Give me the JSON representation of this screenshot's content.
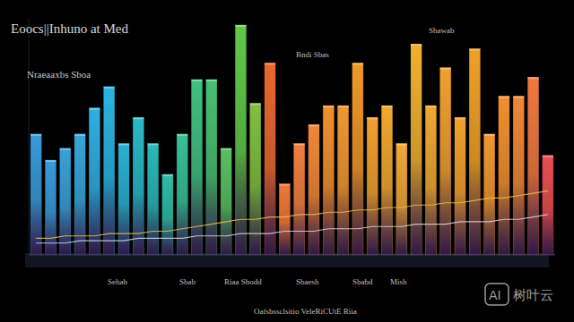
{
  "chart_data": {
    "type": "bar",
    "title": "Eoocs||Inhuno at Med",
    "subtitle": "Nraeaaxbs Sboa",
    "annotations": [
      "Bndi Sbas",
      "Shawab",
      "Sehab",
      "Sbab",
      "Riaa Sbodd",
      "Sbaesh",
      "Sbabd",
      "Mish",
      "Oafsbssclsitio VeleRiCUtE Riia"
    ],
    "categories": [
      null,
      null,
      null,
      null,
      null,
      null,
      null,
      null,
      null,
      null,
      null,
      null,
      null,
      null,
      null,
      null,
      null,
      null,
      null,
      null,
      null,
      null,
      null,
      null,
      null,
      null,
      null,
      null,
      null,
      null,
      null,
      null,
      null,
      null,
      null,
      null
    ],
    "series": [
      {
        "type": "bar",
        "colors": [
          "#3a9ad8",
          "#3a9ad8",
          "#3aa0d8",
          "#38a6d8",
          "#30aee0",
          "#2ab4e0",
          "#2ab0d0",
          "#2ab8c8",
          "#2ab8b8",
          "#30bca8",
          "#38c098",
          "#40c080",
          "#48c070",
          "#58c060",
          "#60c848",
          "#80c040",
          "#e86830",
          "#f07838",
          "#f08040",
          "#f08838",
          "#f09030",
          "#f09830",
          "#f09828",
          "#f0a030",
          "#f0a830",
          "#f0a838",
          "#f0b030",
          "#f0a830",
          "#f0a030",
          "#f0a030",
          "#f0a028",
          "#f09830",
          "#f09030",
          "#f08838",
          "#f07840",
          "#e85050"
        ],
        "values": [
          51,
          40,
          45,
          51,
          62,
          71,
          47,
          58,
          47,
          34,
          51,
          74,
          74,
          45,
          97,
          64,
          81,
          30,
          47,
          55,
          63,
          63,
          81,
          58,
          63,
          47,
          89,
          63,
          79,
          58,
          87,
          51,
          67,
          67,
          75,
          42
        ]
      },
      {
        "type": "line",
        "color": "#f2c04a",
        "values": [
          7,
          7,
          8,
          8,
          8,
          9,
          9,
          9,
          10,
          10,
          11,
          12,
          13,
          14,
          15,
          15,
          16,
          16,
          17,
          17,
          18,
          18,
          19,
          19,
          20,
          20,
          21,
          21,
          22,
          22,
          23,
          24,
          24,
          25,
          26,
          27
        ]
      },
      {
        "type": "line",
        "color": "#d8d8e8",
        "values": [
          5,
          5,
          5,
          6,
          6,
          6,
          6,
          7,
          7,
          7,
          7,
          8,
          8,
          8,
          9,
          9,
          9,
          10,
          10,
          10,
          11,
          11,
          11,
          12,
          12,
          12,
          13,
          13,
          13,
          14,
          14,
          14,
          15,
          15,
          16,
          17
        ]
      }
    ],
    "ylim": [
      0,
      100
    ],
    "tick_labels": false,
    "grid": false
  },
  "watermark": {
    "badge": "AI",
    "text": "树叶云"
  }
}
